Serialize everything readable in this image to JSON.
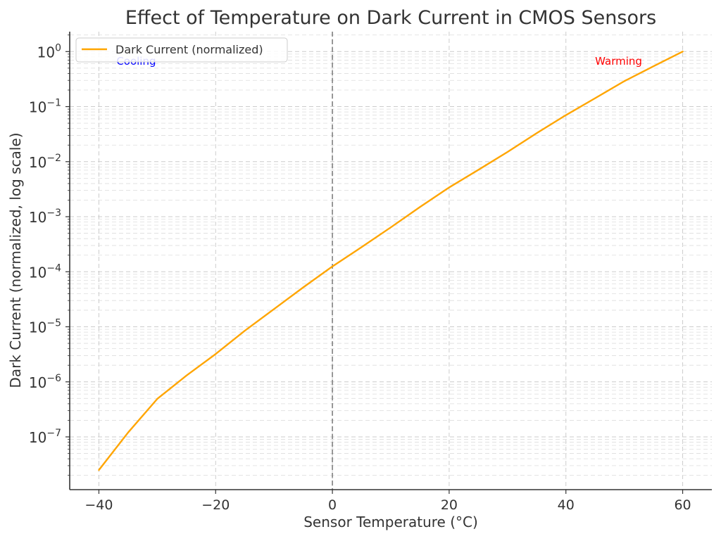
{
  "chart_data": {
    "type": "line",
    "title": "Effect of Temperature on Dark Current in CMOS Sensors",
    "xlabel": "Sensor Temperature (°C)",
    "ylabel": "Dark Current (normalized, log scale)",
    "y_scale": "log",
    "xlim": [
      -45,
      65
    ],
    "ylim": [
      1.1e-08,
      2.3
    ],
    "x_ticks": [
      -40,
      -20,
      0,
      20,
      40,
      60
    ],
    "x_tick_labels": [
      "−40",
      "−20",
      "0",
      "20",
      "40",
      "60"
    ],
    "y_ticks": [
      {
        "exp": 0,
        "label_base": "10",
        "label_exp": "0"
      },
      {
        "exp": -1,
        "label_base": "10",
        "label_exp": "−1"
      },
      {
        "exp": -2,
        "label_base": "10",
        "label_exp": "−2"
      },
      {
        "exp": -3,
        "label_base": "10",
        "label_exp": "−3"
      },
      {
        "exp": -4,
        "label_base": "10",
        "label_exp": "−4"
      },
      {
        "exp": -5,
        "label_base": "10",
        "label_exp": "−5"
      },
      {
        "exp": -6,
        "label_base": "10",
        "label_exp": "−6"
      },
      {
        "exp": -7,
        "label_base": "10",
        "label_exp": "−7"
      }
    ],
    "grid": true,
    "legend_position": "top-left",
    "series": [
      {
        "name": "Dark Current (normalized)",
        "color": "#FFA500",
        "x": [
          -40,
          -35,
          -30,
          -25,
          -20,
          -15,
          -10,
          -5,
          0,
          5,
          10,
          15,
          20,
          25,
          30,
          35,
          40,
          45,
          50,
          55,
          60
        ],
        "y": [
          2.5e-08,
          1.2e-07,
          4.9e-07,
          1.3e-06,
          3.2e-06,
          8.5e-06,
          2.1e-05,
          5.2e-05,
          0.000125,
          0.00028,
          0.00064,
          0.0015,
          0.0034,
          0.0071,
          0.015,
          0.033,
          0.07,
          0.142,
          0.29,
          0.54,
          1.0
        ]
      }
    ],
    "reference_lines": [
      {
        "orientation": "vertical",
        "x": 0,
        "color": "#808080",
        "style": "dashed"
      }
    ],
    "annotations": [
      {
        "text": "Cooling",
        "x": -37,
        "y": 0.58,
        "color": "#0000FF"
      },
      {
        "text": "Warming",
        "x": 45,
        "y": 0.58,
        "color": "#FF0000"
      }
    ]
  }
}
